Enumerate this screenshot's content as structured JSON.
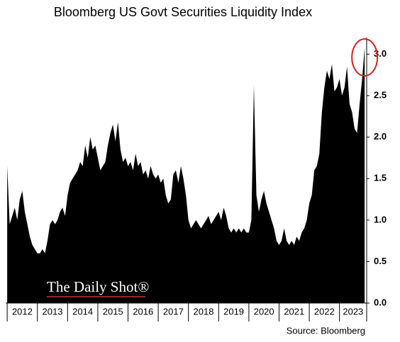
{
  "chart_data": {
    "type": "area",
    "title": "Bloomberg US Govt Securities Liquidity Index",
    "source": "Source: Bloomberg",
    "watermark": "The Daily Shot®",
    "color": "#000000",
    "annotation_color": "#d42020",
    "x": [
      2012,
      2012.083,
      2012.167,
      2012.25,
      2012.333,
      2012.417,
      2012.5,
      2012.583,
      2012.667,
      2012.75,
      2012.833,
      2012.917,
      2013,
      2013.083,
      2013.167,
      2013.25,
      2013.333,
      2013.417,
      2013.5,
      2013.583,
      2013.667,
      2013.75,
      2013.833,
      2013.917,
      2014,
      2014.083,
      2014.167,
      2014.25,
      2014.333,
      2014.417,
      2014.5,
      2014.583,
      2014.667,
      2014.75,
      2014.833,
      2014.917,
      2015,
      2015.083,
      2015.167,
      2015.25,
      2015.333,
      2015.417,
      2015.5,
      2015.583,
      2015.667,
      2015.75,
      2015.833,
      2015.917,
      2016,
      2016.083,
      2016.167,
      2016.25,
      2016.333,
      2016.417,
      2016.5,
      2016.583,
      2016.667,
      2016.75,
      2016.833,
      2016.917,
      2017,
      2017.083,
      2017.167,
      2017.25,
      2017.333,
      2017.417,
      2017.5,
      2017.583,
      2017.667,
      2017.75,
      2017.833,
      2017.917,
      2018,
      2018.083,
      2018.167,
      2018.25,
      2018.333,
      2018.417,
      2018.5,
      2018.583,
      2018.667,
      2018.75,
      2018.833,
      2018.917,
      2019,
      2019.083,
      2019.167,
      2019.25,
      2019.333,
      2019.417,
      2019.5,
      2019.583,
      2019.667,
      2019.75,
      2019.833,
      2019.917,
      2020,
      2020.083,
      2020.167,
      2020.25,
      2020.333,
      2020.417,
      2020.5,
      2020.583,
      2020.667,
      2020.75,
      2020.833,
      2020.917,
      2021,
      2021.083,
      2021.167,
      2021.25,
      2021.333,
      2021.417,
      2021.5,
      2021.583,
      2021.667,
      2021.75,
      2021.833,
      2021.917,
      2022,
      2022.083,
      2022.167,
      2022.25,
      2022.333,
      2022.417,
      2022.5,
      2022.583,
      2022.667,
      2022.75,
      2022.833,
      2022.917,
      2023,
      2023.083,
      2023.167,
      2023.25,
      2023.333,
      2023.417,
      2023.5,
      2023.583,
      2023.667,
      2023.75,
      2023.833
    ],
    "values": [
      1.65,
      0.95,
      1.05,
      1.15,
      1.0,
      1.25,
      1.35,
      1.1,
      0.95,
      0.8,
      0.7,
      0.65,
      0.6,
      0.6,
      0.65,
      0.6,
      0.75,
      0.95,
      1.0,
      0.95,
      1.0,
      1.1,
      1.15,
      1.05,
      1.3,
      1.45,
      1.5,
      1.55,
      1.6,
      1.7,
      1.65,
      1.9,
      1.75,
      2.0,
      1.85,
      1.9,
      1.75,
      1.6,
      1.65,
      1.7,
      1.9,
      2.05,
      2.15,
      1.95,
      2.18,
      1.85,
      1.7,
      1.75,
      1.65,
      1.7,
      1.6,
      1.8,
      1.65,
      1.7,
      1.55,
      1.6,
      1.5,
      1.65,
      1.55,
      1.5,
      1.55,
      1.45,
      1.5,
      1.3,
      1.2,
      1.25,
      1.55,
      1.6,
      1.45,
      1.65,
      1.5,
      1.3,
      1.0,
      0.9,
      0.95,
      1.0,
      0.95,
      0.9,
      0.95,
      1.0,
      1.05,
      0.95,
      1.0,
      1.05,
      1.1,
      1.0,
      1.15,
      1.05,
      0.9,
      0.85,
      0.9,
      0.85,
      0.9,
      0.85,
      0.9,
      0.85,
      0.85,
      1.0,
      2.62,
      1.3,
      1.1,
      1.25,
      1.35,
      1.2,
      1.1,
      1.0,
      0.9,
      0.75,
      0.7,
      0.75,
      0.9,
      0.75,
      0.7,
      0.75,
      0.7,
      0.8,
      0.75,
      0.85,
      0.9,
      1.0,
      1.2,
      1.3,
      1.6,
      1.65,
      1.8,
      2.3,
      2.6,
      2.8,
      2.7,
      2.88,
      2.55,
      2.6,
      2.7,
      2.5,
      2.6,
      2.85,
      2.4,
      2.3,
      2.1,
      2.05,
      2.4,
      2.7,
      3.08
    ],
    "xlim": [
      2011.95,
      2023.9
    ],
    "xticks": [
      {
        "value": 2012,
        "label": "2012"
      },
      {
        "value": 2013,
        "label": "2013"
      },
      {
        "value": 2014,
        "label": "2014"
      },
      {
        "value": 2015,
        "label": "2015"
      },
      {
        "value": 2016,
        "label": "2016"
      },
      {
        "value": 2017,
        "label": "2017"
      },
      {
        "value": 2018,
        "label": "2018"
      },
      {
        "value": 2019,
        "label": "2019"
      },
      {
        "value": 2020,
        "label": "2020"
      },
      {
        "value": 2021,
        "label": "2021"
      },
      {
        "value": 2022,
        "label": "2022"
      },
      {
        "value": 2023,
        "label": "2023"
      }
    ],
    "ylim": [
      0,
      3.2
    ],
    "yticks": [
      {
        "value": 0,
        "label": "0.0"
      },
      0.5,
      {
        "value": 1,
        "label": "1.0"
      },
      1.5,
      {
        "value": 2,
        "label": "2.0"
      },
      2.5,
      {
        "value": 3,
        "label": "3.0"
      }
    ],
    "y_axis_side": "right"
  }
}
